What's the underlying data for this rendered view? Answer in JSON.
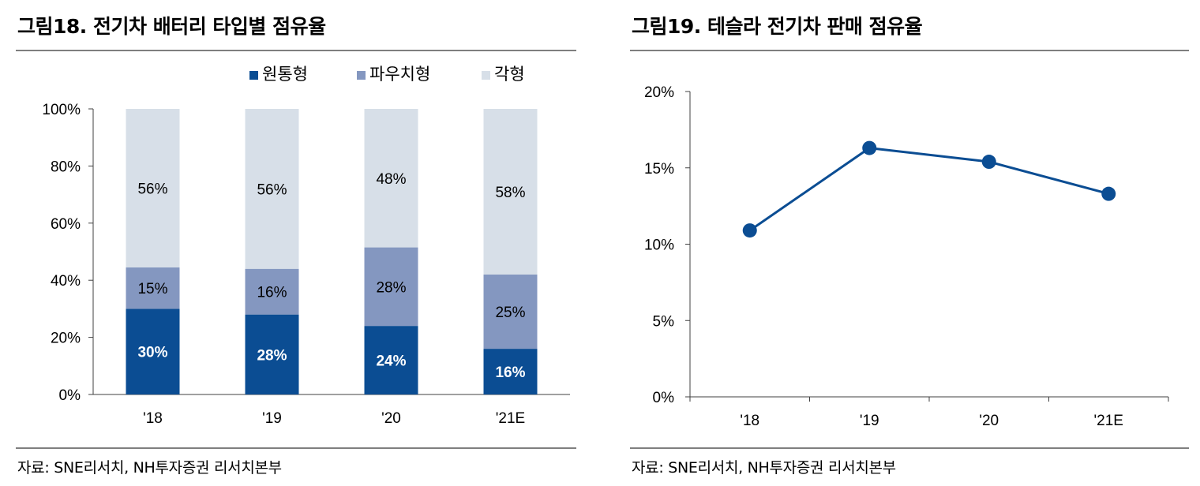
{
  "left_panel": {
    "title": "그림18. 전기차 배터리 타입별 점유율",
    "source": "자료: SNE리서치, NH투자증권 리서치본부"
  },
  "right_panel": {
    "title": "그림19. 테슬라 전기차 판매 점유율",
    "source": "자료: SNE리서치, NH투자증권 리서치본부"
  },
  "colors": {
    "cylindrical": "#0b4d93",
    "pouch": "#8497c0",
    "prismatic": "#d7dfe8",
    "line": "#0b4d93",
    "axis": "#404040"
  },
  "chart_data": [
    {
      "type": "bar",
      "stacked": true,
      "title": "그림18. 전기차 배터리 타입별 점유율",
      "categories": [
        "'18",
        "'19",
        "'20",
        "'21E"
      ],
      "series": [
        {
          "name": "원통형",
          "values": [
            30,
            28,
            24,
            16
          ],
          "labels": [
            "30%",
            "28%",
            "24%",
            "16%"
          ]
        },
        {
          "name": "파우치형",
          "values": [
            15,
            16,
            28,
            25
          ],
          "labels": [
            "15%",
            "16%",
            "28%",
            "25%"
          ]
        },
        {
          "name": "각형",
          "values": [
            56,
            56,
            48,
            58
          ],
          "labels": [
            "56%",
            "56%",
            "48%",
            "58%"
          ]
        }
      ],
      "bar_tops": [
        44.5,
        44,
        51.5,
        42
      ],
      "yticks": [
        "0%",
        "20%",
        "40%",
        "60%",
        "80%",
        "100%"
      ],
      "ylim": [
        0,
        100
      ],
      "legend_position": "top-right"
    },
    {
      "type": "line",
      "title": "그림19. 테슬라 전기차 판매 점유율",
      "categories": [
        "'18",
        "'19",
        "'20",
        "'21E"
      ],
      "values": [
        10.9,
        16.3,
        15.4,
        13.3
      ],
      "yticks": [
        "0%",
        "5%",
        "10%",
        "15%",
        "20%"
      ],
      "ylim": [
        0,
        20
      ]
    }
  ]
}
